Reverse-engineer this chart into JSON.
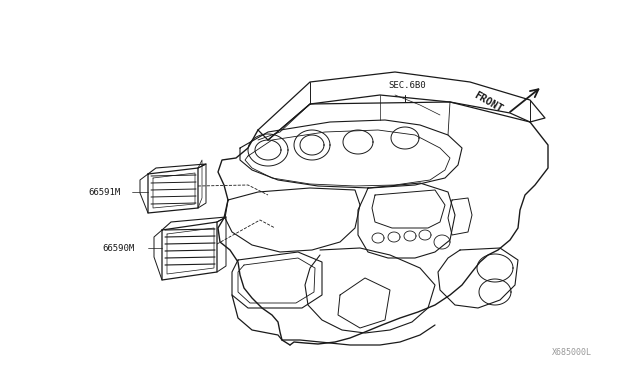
{
  "bg_color": "#ffffff",
  "line_color": "#1a1a1a",
  "sec_label": "SEC.6B0",
  "front_label": "FRONT",
  "part1_label": "66591M",
  "part2_label": "66590M",
  "watermark": "X685000L",
  "fig_width": 6.4,
  "fig_height": 3.72,
  "dpi": 100
}
